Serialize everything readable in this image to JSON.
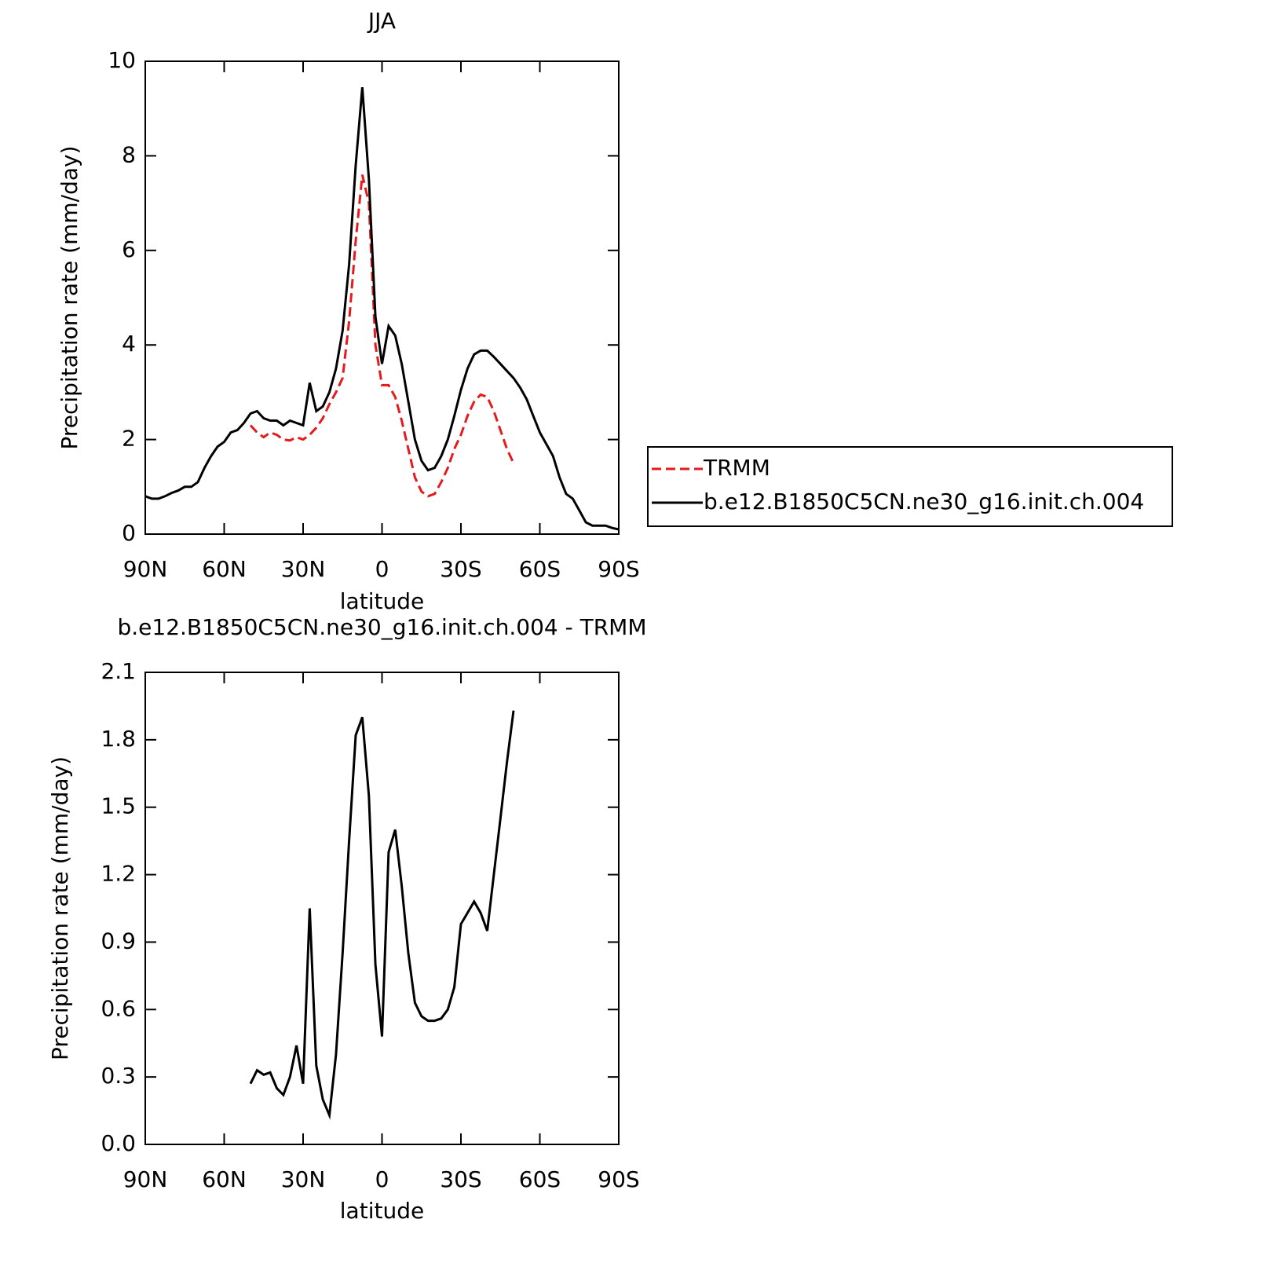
{
  "chart_data": [
    {
      "type": "line",
      "title": "JJA",
      "xlabel": "latitude",
      "ylabel": "Precipitation rate (mm/day)",
      "x": [
        90,
        87.5,
        85,
        82.5,
        80,
        77.5,
        75,
        72.5,
        70,
        67.5,
        65,
        62.5,
        60,
        57.5,
        55,
        52.5,
        50,
        47.5,
        45,
        42.5,
        40,
        37.5,
        35,
        32.5,
        30,
        27.5,
        25,
        22.5,
        20,
        17.5,
        15,
        12.5,
        10,
        7.5,
        5,
        2.5,
        0,
        -2.5,
        -5,
        -7.5,
        -10,
        -12.5,
        -15,
        -17.5,
        -20,
        -22.5,
        -25,
        -27.5,
        -30,
        -32.5,
        -35,
        -37.5,
        -40,
        -42.5,
        -45,
        -47.5,
        -50,
        -52.5,
        -55,
        -57.5,
        -60,
        -62.5,
        -65,
        -67.5,
        -70,
        -72.5,
        -75,
        -77.5,
        -80,
        -82.5,
        -85,
        -87.5,
        -90
      ],
      "series": [
        {
          "name": "TRMM",
          "color": "#e41a1c",
          "line_style": "dashed",
          "values": [
            null,
            null,
            null,
            null,
            null,
            null,
            null,
            null,
            null,
            null,
            null,
            null,
            null,
            null,
            null,
            null,
            2.3,
            2.15,
            2.05,
            2.15,
            2.1,
            2.0,
            1.98,
            2.05,
            2.0,
            2.1,
            2.25,
            2.45,
            2.75,
            3.0,
            3.3,
            4.5,
            6.2,
            7.6,
            7.0,
            4.0,
            3.15,
            3.15,
            2.9,
            2.4,
            1.8,
            1.2,
            0.9,
            0.8,
            0.85,
            1.1,
            1.4,
            1.8,
            2.1,
            2.5,
            2.8,
            2.95,
            2.9,
            2.6,
            2.2,
            1.8,
            1.5,
            null,
            null,
            null,
            null,
            null,
            null,
            null,
            null,
            null,
            null,
            null,
            null,
            null,
            null,
            null,
            null
          ]
        },
        {
          "name": "b.e12.B1850C5CN.ne30_g16.init.ch.004",
          "color": "#000000",
          "line_style": "solid",
          "values": [
            0.8,
            0.75,
            0.75,
            0.8,
            0.87,
            0.92,
            1.0,
            1.0,
            1.1,
            1.4,
            1.65,
            1.85,
            1.95,
            2.15,
            2.2,
            2.35,
            2.55,
            2.6,
            2.45,
            2.4,
            2.4,
            2.3,
            2.4,
            2.35,
            2.3,
            3.2,
            2.6,
            2.7,
            3.0,
            3.5,
            4.3,
            5.7,
            7.8,
            9.45,
            7.5,
            4.6,
            3.6,
            4.4,
            4.2,
            3.6,
            2.8,
            2.0,
            1.55,
            1.35,
            1.4,
            1.65,
            2.0,
            2.5,
            3.05,
            3.5,
            3.8,
            3.88,
            3.88,
            3.75,
            3.6,
            3.45,
            3.3,
            3.1,
            2.85,
            2.5,
            2.15,
            1.9,
            1.65,
            1.2,
            0.85,
            0.75,
            0.5,
            0.25,
            0.18,
            0.18,
            0.18,
            0.13,
            0.1
          ]
        }
      ],
      "xlim": [
        90,
        -90
      ],
      "xticks": [
        {
          "value": 90,
          "label": "90N"
        },
        {
          "value": 60,
          "label": "60N"
        },
        {
          "value": 30,
          "label": "30N"
        },
        0,
        {
          "value": -30,
          "label": "30S"
        },
        {
          "value": -60,
          "label": "60S"
        },
        {
          "value": -90,
          "label": "90S"
        }
      ],
      "ylim": [
        0,
        10
      ],
      "yticks": [
        0,
        2,
        4,
        6,
        8,
        10
      ],
      "grid": false,
      "legend": "right"
    },
    {
      "type": "line",
      "title": "b.e12.B1850C5CN.ne30_g16.init.ch.004 - TRMM",
      "xlabel": "latitude",
      "ylabel": "Precipitation rate (mm/day)",
      "x": [
        50,
        47.5,
        45,
        42.5,
        40,
        37.5,
        35,
        32.5,
        30,
        27.5,
        25,
        22.5,
        20,
        17.5,
        15,
        12.5,
        10,
        7.5,
        5,
        2.5,
        0,
        -2.5,
        -5,
        -7.5,
        -10,
        -12.5,
        -15,
        -17.5,
        -20,
        -22.5,
        -25,
        -27.5,
        -30,
        -32.5,
        -35,
        -37.5,
        -40,
        -42.5,
        -45,
        -47.5,
        -50
      ],
      "series": [
        {
          "color": "#000000",
          "line_style": "solid",
          "values": [
            0.27,
            0.33,
            0.31,
            0.32,
            0.25,
            0.22,
            0.3,
            0.44,
            0.27,
            1.05,
            0.35,
            0.2,
            0.13,
            0.4,
            0.85,
            1.35,
            1.82,
            1.9,
            1.55,
            0.8,
            0.48,
            1.3,
            1.4,
            1.15,
            0.85,
            0.63,
            0.57,
            0.55,
            0.55,
            0.56,
            0.6,
            0.7,
            0.98,
            1.03,
            1.08,
            1.03,
            0.95,
            1.2,
            1.45,
            1.7,
            1.93
          ]
        }
      ],
      "xlim": [
        90,
        -90
      ],
      "xticks": [
        {
          "value": 90,
          "label": "90N"
        },
        {
          "value": 60,
          "label": "60N"
        },
        {
          "value": 30,
          "label": "30N"
        },
        0,
        {
          "value": -30,
          "label": "30S"
        },
        {
          "value": -60,
          "label": "60S"
        },
        {
          "value": -90,
          "label": "90S"
        }
      ],
      "ylim": [
        0,
        2.1
      ],
      "yticks": [
        {
          "value": 0,
          "label": "0.0"
        },
        0.3,
        0.6,
        0.9,
        1.2,
        1.5,
        1.8,
        2.1
      ],
      "grid": false
    }
  ]
}
